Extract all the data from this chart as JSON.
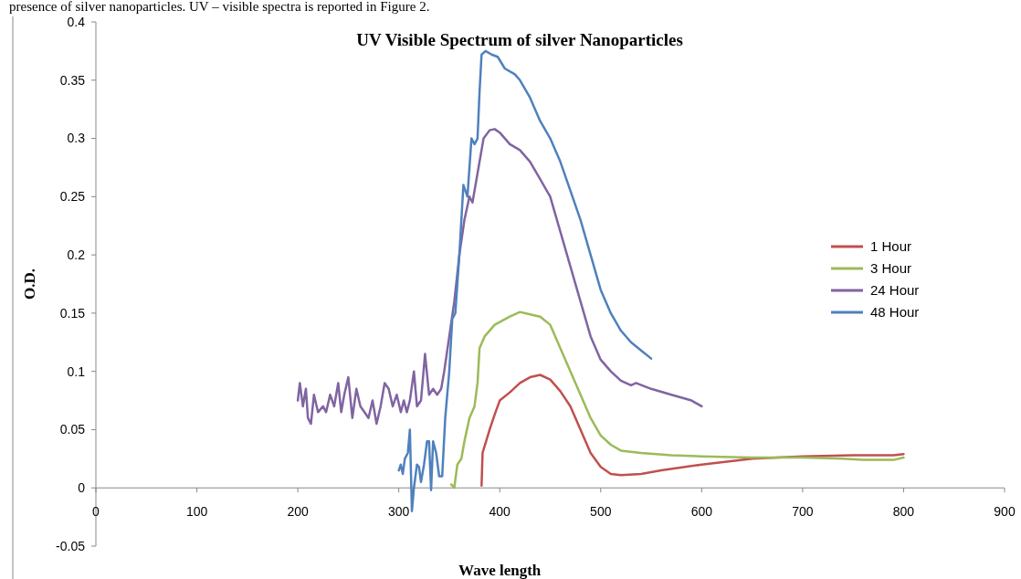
{
  "chart_data": {
    "type": "line",
    "title": "UV Visible Spectrum of silver Nanoparticles",
    "xlabel": "Wave length",
    "ylabel": "O.D.",
    "annotations": [
      "presence of silver nanoparticles. UV – visible spectra is reported in Figure 2."
    ],
    "xlim": [
      0,
      900
    ],
    "xticks": [
      0,
      100,
      200,
      300,
      400,
      500,
      600,
      700,
      800,
      900
    ],
    "ylim": [
      -0.05,
      0.4
    ],
    "yticks": [
      -0.05,
      0,
      0.05,
      0.1,
      0.15,
      0.2,
      0.25,
      0.3,
      0.35,
      0.4
    ],
    "grid": false,
    "legend": "right",
    "marker": "none",
    "line_style": "solid",
    "series": [
      {
        "name": "1 Hour",
        "color": "#c0504d",
        "x": [
          382,
          383,
          390,
          395,
          400,
          410,
          420,
          430,
          440,
          450,
          460,
          470,
          480,
          490,
          500,
          510,
          520,
          540,
          560,
          600,
          650,
          700,
          750,
          790,
          800
        ],
        "values": [
          0.002,
          0.03,
          0.05,
          0.063,
          0.075,
          0.082,
          0.09,
          0.095,
          0.097,
          0.093,
          0.083,
          0.07,
          0.05,
          0.03,
          0.018,
          0.012,
          0.011,
          0.012,
          0.015,
          0.02,
          0.025,
          0.027,
          0.028,
          0.028,
          0.029
        ]
      },
      {
        "name": "3 Hour",
        "color": "#9bbb59",
        "x": [
          352,
          355,
          358,
          362,
          365,
          370,
          375,
          378,
          380,
          385,
          395,
          410,
          420,
          430,
          440,
          450,
          460,
          470,
          480,
          490,
          500,
          510,
          520,
          540,
          570,
          600,
          650,
          700,
          740,
          760,
          790,
          800
        ],
        "values": [
          0.003,
          0.0,
          0.02,
          0.025,
          0.04,
          0.06,
          0.07,
          0.09,
          0.12,
          0.13,
          0.14,
          0.147,
          0.151,
          0.149,
          0.147,
          0.14,
          0.12,
          0.1,
          0.08,
          0.06,
          0.045,
          0.037,
          0.032,
          0.03,
          0.028,
          0.027,
          0.026,
          0.026,
          0.025,
          0.024,
          0.024,
          0.026
        ]
      },
      {
        "name": "24 Hour",
        "color": "#8064a2",
        "x": [
          200,
          202,
          205,
          208,
          210,
          213,
          216,
          220,
          225,
          228,
          232,
          236,
          240,
          243,
          246,
          250,
          254,
          258,
          262,
          266,
          270,
          274,
          278,
          282,
          286,
          290,
          294,
          298,
          302,
          305,
          308,
          311,
          315,
          318,
          322,
          326,
          330,
          334,
          338,
          342,
          345,
          350,
          355,
          360,
          365,
          370,
          373,
          376,
          380,
          384,
          390,
          395,
          400,
          410,
          420,
          430,
          440,
          450,
          460,
          470,
          480,
          490,
          500,
          510,
          520,
          530,
          535,
          550,
          570,
          590,
          600
        ],
        "values": [
          0.075,
          0.09,
          0.07,
          0.085,
          0.06,
          0.055,
          0.08,
          0.065,
          0.07,
          0.065,
          0.08,
          0.07,
          0.09,
          0.065,
          0.08,
          0.095,
          0.06,
          0.085,
          0.07,
          0.065,
          0.06,
          0.075,
          0.055,
          0.07,
          0.09,
          0.085,
          0.07,
          0.08,
          0.065,
          0.075,
          0.065,
          0.075,
          0.1,
          0.07,
          0.075,
          0.115,
          0.08,
          0.085,
          0.08,
          0.085,
          0.1,
          0.13,
          0.16,
          0.2,
          0.23,
          0.25,
          0.245,
          0.26,
          0.28,
          0.3,
          0.307,
          0.308,
          0.305,
          0.295,
          0.29,
          0.28,
          0.265,
          0.25,
          0.22,
          0.19,
          0.16,
          0.13,
          0.11,
          0.1,
          0.092,
          0.088,
          0.09,
          0.085,
          0.08,
          0.075,
          0.07
        ]
      },
      {
        "name": "48 Hour",
        "color": "#4f81bd",
        "x": [
          300,
          302,
          304,
          306,
          309,
          311,
          313,
          315,
          318,
          320,
          322,
          325,
          328,
          330,
          332,
          334,
          337,
          340,
          343,
          346,
          350,
          353,
          356,
          360,
          364,
          368,
          372,
          375,
          378,
          380,
          382,
          386,
          392,
          398,
          405,
          415,
          420,
          430,
          440,
          450,
          460,
          470,
          480,
          490,
          500,
          510,
          520,
          530,
          540,
          550
        ],
        "values": [
          0.015,
          0.02,
          0.012,
          0.025,
          0.03,
          0.05,
          -0.02,
          0.0,
          0.02,
          0.018,
          0.005,
          0.02,
          0.04,
          0.04,
          -0.002,
          0.04,
          0.03,
          0.01,
          0.01,
          0.06,
          0.1,
          0.145,
          0.15,
          0.2,
          0.26,
          0.25,
          0.3,
          0.295,
          0.3,
          0.34,
          0.372,
          0.375,
          0.372,
          0.37,
          0.36,
          0.355,
          0.35,
          0.335,
          0.315,
          0.3,
          0.28,
          0.255,
          0.23,
          0.2,
          0.17,
          0.15,
          0.135,
          0.125,
          0.118,
          0.111
        ]
      }
    ]
  }
}
